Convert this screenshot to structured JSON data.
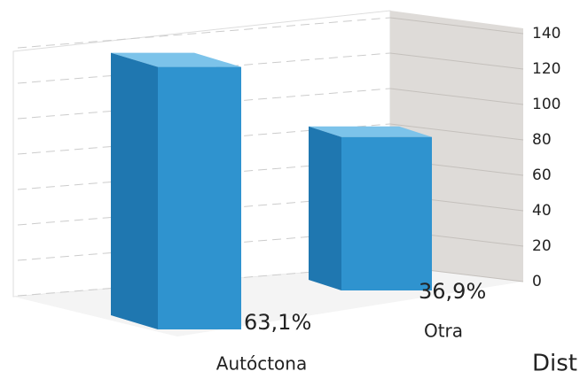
{
  "chart_data": {
    "type": "bar3d",
    "categories": [
      "Autóctona",
      "Otra"
    ],
    "values": [
      130,
      76
    ],
    "share_labels": [
      "63,1%",
      "36,9%"
    ],
    "color": "#2f93cf",
    "ylim": [
      0,
      140
    ],
    "yticks": [
      0,
      20,
      40,
      60,
      80,
      100,
      120,
      140
    ],
    "grid": true,
    "x_label": "Dist"
  }
}
